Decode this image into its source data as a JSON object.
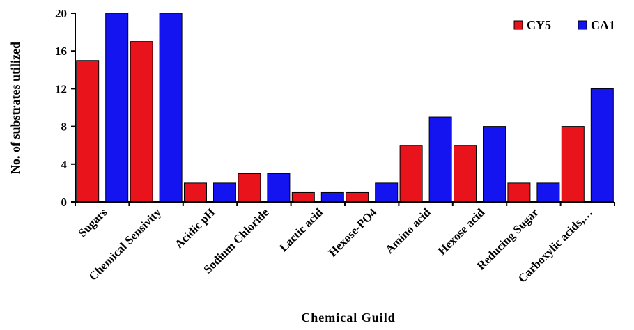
{
  "chart_data": {
    "type": "bar",
    "title": "",
    "xlabel": "Chemical Guild",
    "ylabel": "No. of substrates utilized",
    "ylim": [
      0,
      20
    ],
    "yticks": [
      0,
      4,
      8,
      12,
      16,
      20
    ],
    "grid": false,
    "legend_position": "top-right",
    "categories": [
      "Sugars",
      "Chemical Sensivity",
      "Acidic pH",
      "Sodium Chloride",
      "Lactic acid",
      "Hexose-PO4",
      "Amino acid",
      "Hexose acid",
      "Reducing Sugar",
      "Carboxylic acids,…"
    ],
    "series": [
      {
        "name": "CY5",
        "color": "#e8131b",
        "values": [
          15,
          17,
          2,
          3,
          1,
          1,
          6,
          6,
          2,
          8
        ]
      },
      {
        "name": "CA1",
        "color": "#1414f0",
        "values": [
          20,
          20,
          2,
          3,
          1,
          2,
          9,
          8,
          2,
          12
        ]
      }
    ]
  }
}
